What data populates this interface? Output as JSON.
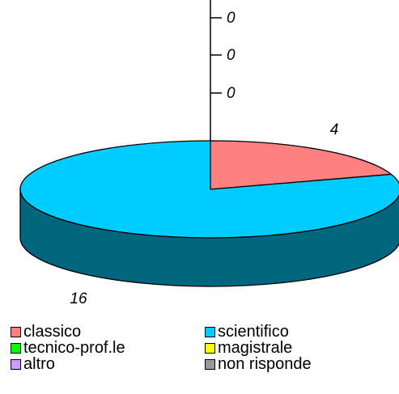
{
  "chart_data": {
    "type": "pie",
    "categories": [
      "classico",
      "scientifico",
      "tecnico-prof.le",
      "magistrale",
      "altro",
      "non risponde"
    ],
    "values": [
      4,
      16,
      0,
      0,
      0,
      0
    ],
    "data_labels": [
      "4",
      "16",
      "0",
      "0",
      "0",
      "0"
    ],
    "colors": [
      "#FF8080",
      "#00CCFF",
      "#00FF00",
      "#FFFF00",
      "#CC99FF",
      "#999999"
    ],
    "side_colors": [
      "#C06060",
      "#006680",
      "#008000",
      "#808000",
      "#806699",
      "#666666"
    ],
    "three_d": true,
    "legend_position": "bottom"
  },
  "legend": [
    {
      "label": "classico",
      "color": "#FF8080"
    },
    {
      "label": "scientifico",
      "color": "#00CCFF"
    },
    {
      "label": "tecnico-prof.le",
      "color": "#00FF00"
    },
    {
      "label": "magistrale",
      "color": "#FFFF00"
    },
    {
      "label": "altro",
      "color": "#CC99FF"
    },
    {
      "label": "non risponde",
      "color": "#999999"
    }
  ]
}
